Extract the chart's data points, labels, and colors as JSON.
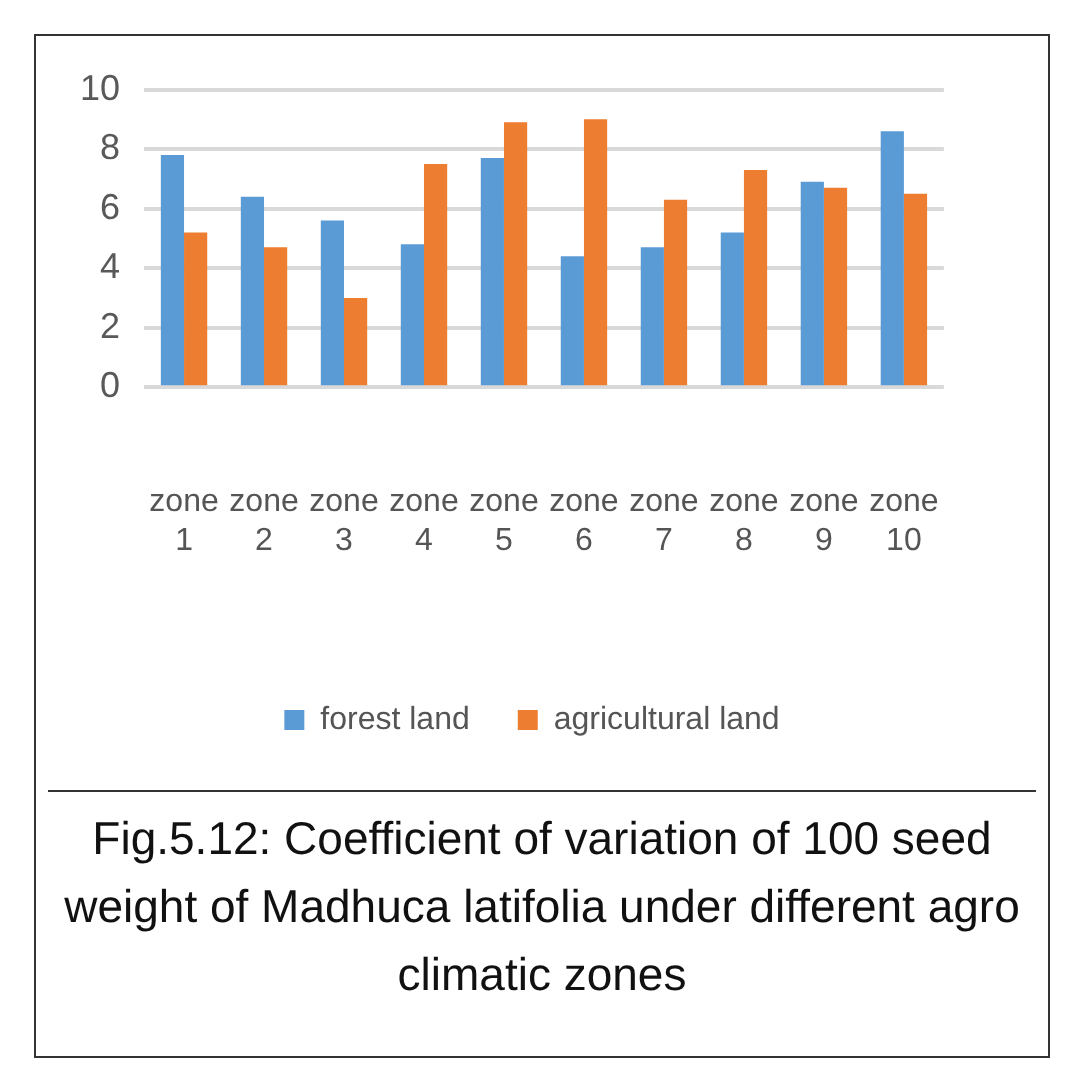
{
  "chart_data": {
    "type": "bar",
    "title": "Fig.5.12: Coefficient of variation of 100 seed weight of Madhuca latifolia under different agro climatic zones",
    "categories": [
      "zone 1",
      "zone 2",
      "zone 3",
      "zone 4",
      "zone 5",
      "zone 6",
      "zone 7",
      "zone 8",
      "zone 9",
      "zone 10"
    ],
    "series": [
      {
        "name": "forest land",
        "color": "#5b9bd5",
        "values": [
          7.8,
          6.4,
          5.6,
          4.8,
          7.7,
          4.4,
          4.7,
          5.2,
          6.9,
          8.6
        ]
      },
      {
        "name": "agricultural land",
        "color": "#ed7d31",
        "values": [
          5.2,
          4.7,
          3.0,
          7.5,
          8.9,
          9.0,
          6.3,
          7.3,
          6.7,
          6.5
        ]
      }
    ],
    "ylim": [
      0,
      10
    ],
    "yticks": [
      0,
      2,
      4,
      6,
      8,
      10
    ],
    "grid": "y",
    "legend": "bottom"
  }
}
